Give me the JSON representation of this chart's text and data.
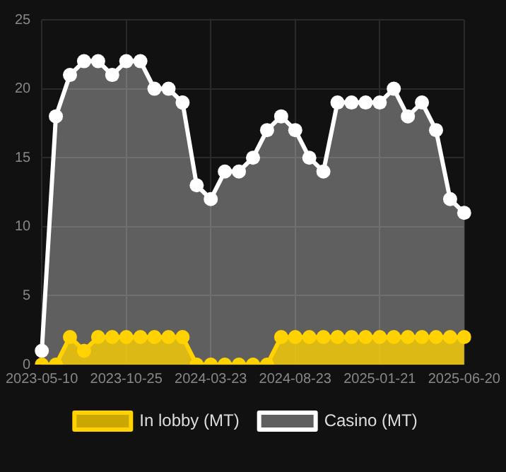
{
  "chart_data": {
    "type": "area",
    "categories": [
      "2023-05-10",
      null,
      null,
      null,
      null,
      null,
      "2023-10-25",
      null,
      null,
      null,
      null,
      null,
      "2024-03-23",
      null,
      null,
      null,
      null,
      null,
      "2024-08-23",
      null,
      null,
      null,
      null,
      null,
      "2025-01-21",
      null,
      null,
      null,
      null,
      null,
      "2025-06-20"
    ],
    "series": [
      {
        "name": "In lobby (MT)",
        "color": "#ffd200",
        "values": [
          0,
          0,
          2,
          1,
          2,
          2,
          2,
          2,
          2,
          2,
          2,
          0,
          0,
          0,
          0,
          0,
          0,
          2,
          2,
          2,
          2,
          2,
          2,
          2,
          2,
          2,
          2,
          2,
          2,
          2,
          2
        ]
      },
      {
        "name": "Casino (MT)",
        "color": "#ffffff",
        "values": [
          1,
          18,
          21,
          22,
          22,
          21,
          22,
          22,
          20,
          20,
          19,
          13,
          12,
          14,
          14,
          15,
          17,
          18,
          17,
          15,
          14,
          19,
          19,
          19,
          19,
          20,
          18,
          19,
          17,
          12,
          11
        ]
      }
    ],
    "ylim": [
      0,
      25
    ],
    "yticks": [
      0,
      5,
      10,
      15,
      20,
      25
    ],
    "grid": true,
    "legend": "bottom",
    "marker": "circle"
  }
}
